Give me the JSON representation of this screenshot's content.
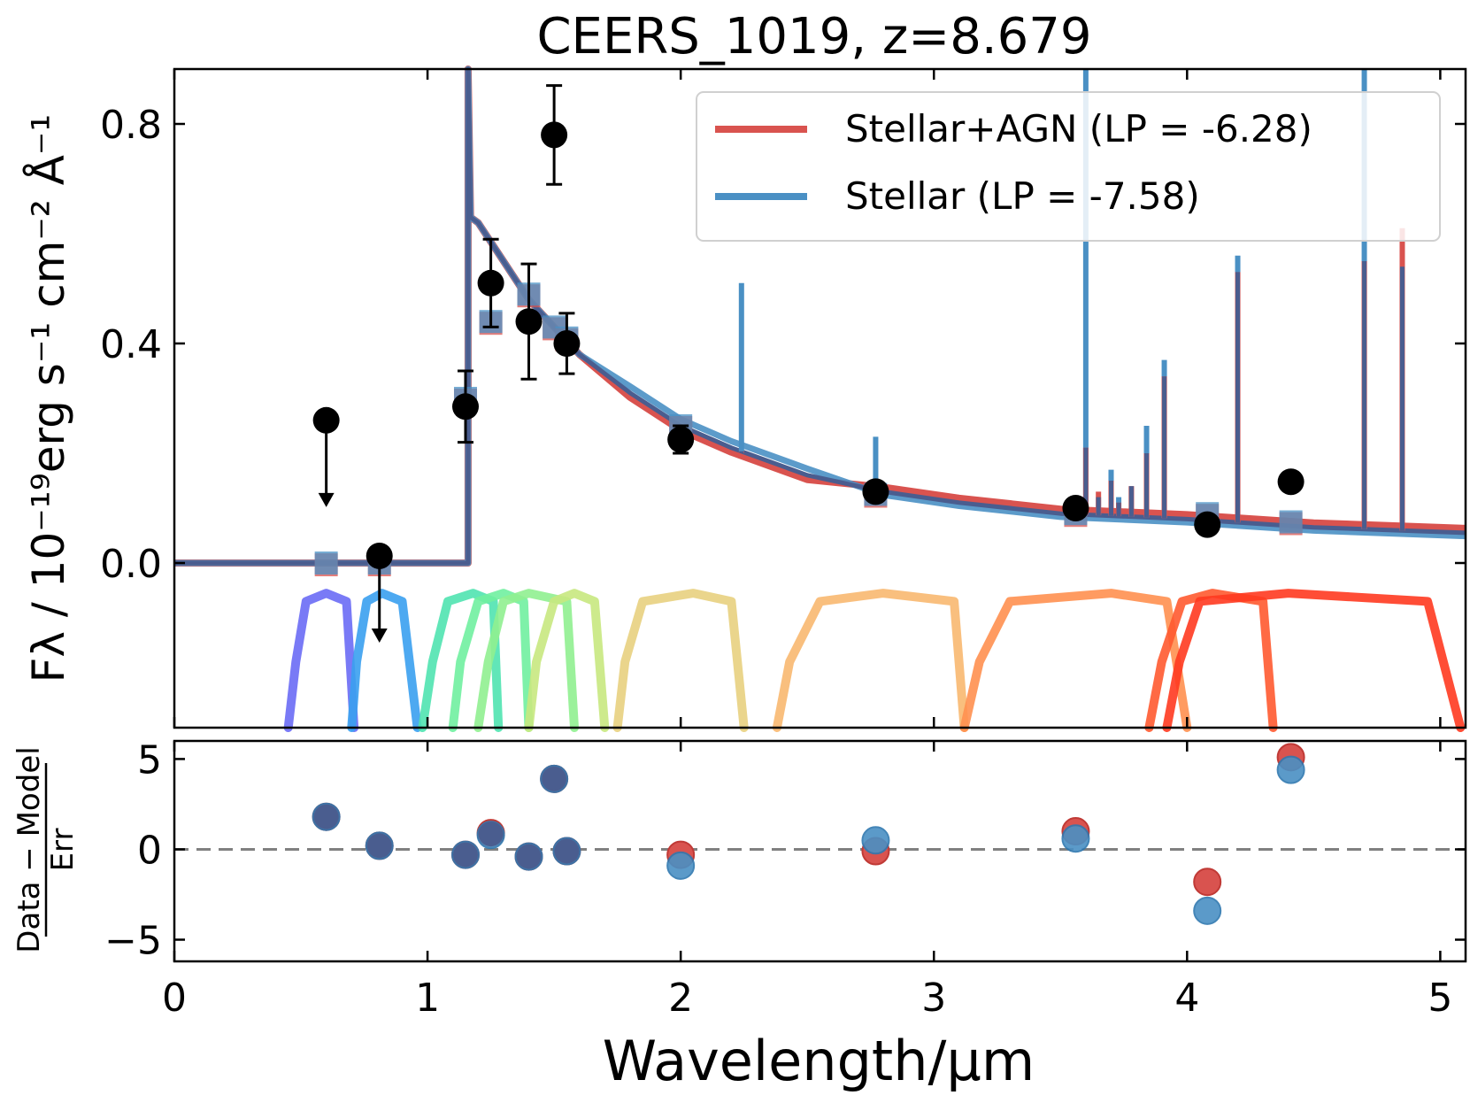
{
  "chart_data": {
    "type": "scatter",
    "title": "CEERS_1019, z=8.679",
    "xlabel": "Wavelength/μm",
    "ylabel_top": "Fλ / 10⁻¹⁹erg s⁻¹ cm⁻² Å⁻¹",
    "ylabel_bottom": {
      "numerator": "Data − Model",
      "denominator": "Err"
    },
    "xlim": [
      0,
      5.1
    ],
    "ylim_top": [
      -0.3,
      0.9
    ],
    "ylim_bottom": [
      -6.2,
      6
    ],
    "xticks": [
      0,
      1,
      2,
      3,
      4,
      5
    ],
    "xtick_labels": [
      "0",
      "1",
      "2",
      "3",
      "4",
      "5"
    ],
    "yticks_top": [
      0.0,
      0.4,
      0.8
    ],
    "ytick_labels_top": [
      "0.0",
      "0.4",
      "0.8"
    ],
    "yticks_bottom": [
      -5,
      0,
      5
    ],
    "ytick_labels_bottom": [
      "−5",
      "0",
      "5"
    ],
    "legend": [
      {
        "label": "Stellar+AGN (LP = -6.28)",
        "color": "#d9534f"
      },
      {
        "label": "Stellar (LP = -7.58)",
        "color": "#4a90c4"
      }
    ],
    "colors": {
      "stellar_agn": "#d9534f",
      "stellar": "#4a90c4",
      "overlap": "#4a5d8f",
      "data": "#000000",
      "zero_line": "#808080"
    },
    "observed": [
      {
        "x": 0.6,
        "y": 0.26,
        "upper_limit": true
      },
      {
        "x": 0.81,
        "y": 0.013,
        "upper_limit": true
      },
      {
        "x": 1.15,
        "y": 0.285,
        "err": 0.065
      },
      {
        "x": 1.25,
        "y": 0.51,
        "err": 0.08
      },
      {
        "x": 1.4,
        "y": 0.44,
        "err": 0.105
      },
      {
        "x": 1.5,
        "y": 0.78,
        "err": 0.09
      },
      {
        "x": 1.55,
        "y": 0.4,
        "err": 0.055
      },
      {
        "x": 2.0,
        "y": 0.225,
        "err": 0.025
      },
      {
        "x": 2.77,
        "y": 0.13,
        "err": 0.01
      },
      {
        "x": 3.56,
        "y": 0.1,
        "err": 0.008
      },
      {
        "x": 4.08,
        "y": 0.07,
        "err": 0.008
      },
      {
        "x": 4.41,
        "y": 0.148,
        "err": 0.01
      }
    ],
    "model_photometry": [
      {
        "x": 0.6,
        "y": 0.0
      },
      {
        "x": 0.81,
        "y": 0.0
      },
      {
        "x": 1.15,
        "y": 0.3
      },
      {
        "x": 1.25,
        "y": 0.44
      },
      {
        "x": 1.4,
        "y": 0.49
      },
      {
        "x": 1.5,
        "y": 0.43
      },
      {
        "x": 1.55,
        "y": 0.41
      },
      {
        "x": 2.0,
        "y": 0.25
      },
      {
        "x": 2.77,
        "y": 0.125
      },
      {
        "x": 3.56,
        "y": 0.09
      },
      {
        "x": 4.08,
        "y": 0.09
      },
      {
        "x": 4.41,
        "y": 0.075
      }
    ],
    "sed_continuum": {
      "x": [
        0,
        1.16,
        1.16,
        1.17,
        1.2,
        1.3,
        1.4,
        1.5,
        1.6,
        1.8,
        2.0,
        2.2,
        2.5,
        2.8,
        3.1,
        3.5,
        4.0,
        4.5,
        5.1
      ],
      "y": [
        0,
        0,
        0.9,
        0.63,
        0.62,
        0.55,
        0.48,
        0.43,
        0.38,
        0.31,
        0.25,
        0.21,
        0.16,
        0.13,
        0.11,
        0.09,
        0.08,
        0.065,
        0.055
      ]
    },
    "emission_lines": [
      {
        "x": 2.24,
        "stellar": 0.51,
        "agn": 0.2
      },
      {
        "x": 2.77,
        "stellar": 0.23,
        "agn": 0.15
      },
      {
        "x": 3.6,
        "stellar": 0.9,
        "agn": 0.21
      },
      {
        "x": 3.65,
        "stellar": 0.12,
        "agn": 0.13
      },
      {
        "x": 3.7,
        "stellar": 0.17,
        "agn": 0.15
      },
      {
        "x": 3.73,
        "stellar": 0.12,
        "agn": 0.11
      },
      {
        "x": 3.78,
        "stellar": 0.14,
        "agn": 0.14
      },
      {
        "x": 3.84,
        "stellar": 0.25,
        "agn": 0.2
      },
      {
        "x": 3.91,
        "stellar": 0.37,
        "agn": 0.34
      },
      {
        "x": 4.2,
        "stellar": 0.56,
        "agn": 0.53
      },
      {
        "x": 4.7,
        "stellar": 0.9,
        "agn": 0.55
      },
      {
        "x": 4.85,
        "stellar": 0.54,
        "agn": 0.61
      }
    ],
    "filters": [
      {
        "x": [
          0.45,
          0.48,
          0.52,
          0.6,
          0.68,
          0.71
        ],
        "color": "#6a6cf5"
      },
      {
        "x": [
          0.7,
          0.72,
          0.76,
          0.82,
          0.9,
          0.96
        ],
        "color": "#3aa0f0"
      },
      {
        "x": [
          0.98,
          1.02,
          1.08,
          1.18,
          1.26,
          1.28
        ],
        "color": "#50e3b0"
      },
      {
        "x": [
          1.1,
          1.13,
          1.2,
          1.3,
          1.38,
          1.4
        ],
        "color": "#70f0a0"
      },
      {
        "x": [
          1.2,
          1.24,
          1.3,
          1.4,
          1.55,
          1.58
        ],
        "color": "#90f090"
      },
      {
        "x": [
          1.4,
          1.43,
          1.5,
          1.58,
          1.66,
          1.7
        ],
        "color": "#c8e880"
      },
      {
        "x": [
          1.75,
          1.78,
          1.85,
          2.05,
          2.2,
          2.25
        ],
        "color": "#e8d080"
      },
      {
        "x": [
          2.38,
          2.43,
          2.55,
          2.8,
          3.08,
          3.12
        ],
        "color": "#f8b870"
      },
      {
        "x": [
          3.12,
          3.18,
          3.3,
          3.7,
          3.92,
          4.0
        ],
        "color": "#ff9050"
      },
      {
        "x": [
          3.85,
          3.9,
          3.98,
          4.1,
          4.3,
          4.34
        ],
        "color": "#ff5a30"
      },
      {
        "x": [
          3.92,
          3.97,
          4.05,
          4.4,
          4.95,
          5.08
        ],
        "color": "#ff3a20"
      }
    ],
    "residuals": {
      "x": [
        0.6,
        0.81,
        1.15,
        1.25,
        1.4,
        1.5,
        1.55,
        2.0,
        2.77,
        3.56,
        4.08,
        4.41
      ],
      "stellar_agn": [
        1.8,
        0.2,
        -0.3,
        0.9,
        -0.4,
        3.9,
        -0.1,
        -0.3,
        -0.1,
        1.0,
        -1.8,
        5.1
      ],
      "stellar": [
        1.8,
        0.2,
        -0.3,
        0.8,
        -0.4,
        3.9,
        -0.1,
        -0.9,
        0.5,
        0.6,
        -3.4,
        4.4
      ]
    }
  }
}
